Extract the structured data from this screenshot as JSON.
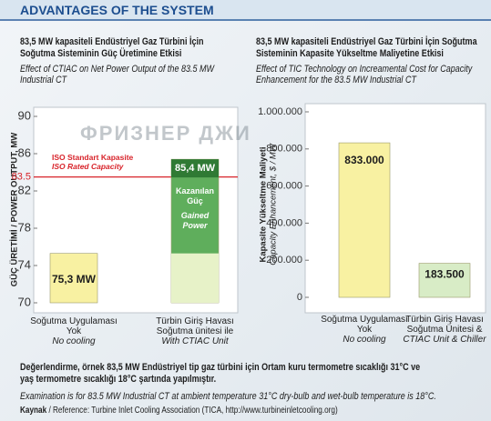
{
  "header": {
    "title": "ADVANTAGES OF THE SYSTEM"
  },
  "watermark": "ФРИЗНЕР ДЖИ",
  "chart_data": [
    {
      "type": "bar",
      "title": "83,5 MW kapasiteli Endüstriyel Gaz Türbini İçin\nSoğutma Sisteminin Güç Üretimine Etkisi",
      "subtitle": "Effect of CTIAC on Net Power Output of the 83.5 MW\nIndustrial CT",
      "y_label": "GÜÇ ÜRETİMİ / POWER OUTPUT, MW",
      "categories": [
        "Soğutma Uygulaması\nYok",
        "Türbin Giriş Havası\nSoğutma ünitesi ile"
      ],
      "categories_en": [
        "No cooling",
        "With CTIAC Unit"
      ],
      "values": [
        75.3,
        85.4
      ],
      "value_labels": [
        "75,3 MW",
        "85,4 MW"
      ],
      "colors": [
        "#f8f1a2",
        "#5fae5c"
      ],
      "ylim": [
        70,
        90
      ],
      "yticks": [
        70,
        74,
        78,
        82,
        86,
        90
      ],
      "reference_line": {
        "value": 83.5,
        "text": "ISO Standart Kapasite",
        "text_en": "ISO Rated Capacity",
        "color": "#d8232a"
      },
      "gained_label": "Kazanılan\nGüç",
      "gained_label_en": "Gained\nPower"
    },
    {
      "type": "bar",
      "title": "83,5 MW kapasiteli Endüstriyel Gaz Türbini İçin Soğutma\nSisteminin Kapasite Yükseltme Maliyetine Etkisi",
      "subtitle": "Effect of TIC Technology on Increamental Cost for Capacity\nEnhancement for the 83.5 MW Industrial CT",
      "y_label": "Kapasite Yükseltme Maliyeti",
      "y_label_en": "Capacity Enhancement, $ / MW",
      "categories": [
        "Soğutma Uygulaması\nYok",
        "Türbin Giriş Havası\nSoğutma Ünitesi &"
      ],
      "categories_en": [
        "No cooling",
        "CTIAC Unit & Chiller"
      ],
      "values": [
        833000,
        183500
      ],
      "value_labels": [
        "833.000",
        "183.500"
      ],
      "colors": [
        "#f8f1a2",
        "#d8ecc6"
      ],
      "ylim": [
        0,
        1000000
      ],
      "yticks": [
        0,
        {
          "value": 200000,
          "label": "200.000"
        },
        {
          "value": 400000,
          "label": "400.000"
        },
        {
          "value": 600000,
          "label": "600.000"
        },
        {
          "value": 800000,
          "label": "800.000"
        },
        {
          "value": 1000000,
          "label": "1.000.000"
        }
      ]
    }
  ],
  "footer": {
    "note": "Değerlendirme, örnek 83,5 MW Endüstriyel tip gaz türbini için Ortam kuru termometre sıcaklığı 31°C ve\nyaş termometre sıcaklığı 18°C şartında yapılmıştır.",
    "note_en": "Examination is for 83.5 MW Industrial CT at ambient temperature 31°C dry-bulb and wet-bulb temperature is 18°C.",
    "reference_key": "Kaynak",
    "reference": " / Reference: Turbine Inlet Cooling Association (TICA, http://www.turbineinletcooling.org)"
  }
}
